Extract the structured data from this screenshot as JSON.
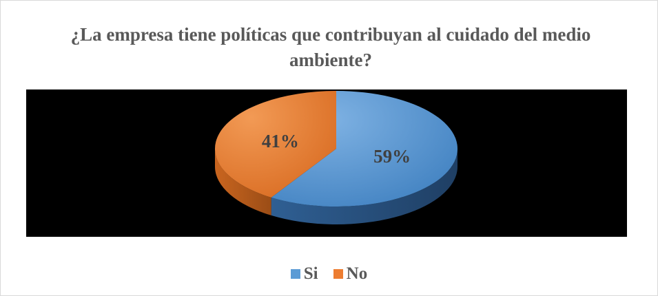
{
  "chart_data": {
    "type": "pie",
    "style": "3d",
    "title": "¿La empresa tiene políticas que contribuyan al cuidado del medio ambiente?",
    "categories": [
      "Si",
      "No"
    ],
    "values": [
      59,
      41
    ],
    "data_labels": [
      "59%",
      "41%"
    ],
    "colors": [
      "#5b9bd5",
      "#ed7d31"
    ],
    "legend": "bottom",
    "plot_background": "#000000"
  }
}
